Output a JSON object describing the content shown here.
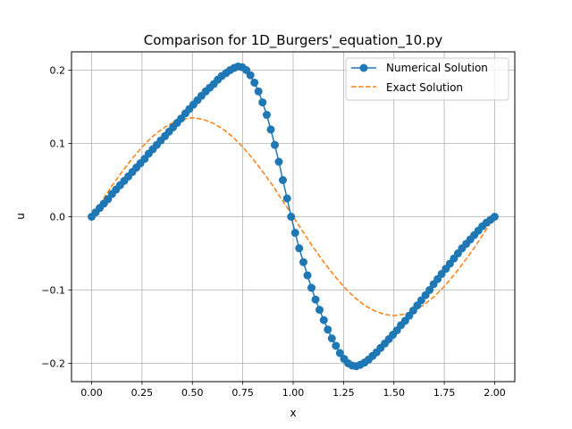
{
  "chart_data": {
    "type": "line",
    "title": "Comparison for 1D_Burgers'_equation_10.py",
    "xlabel": "x",
    "ylabel": "u",
    "xlim": [
      -0.1,
      2.1
    ],
    "ylim": [
      -0.225,
      0.225
    ],
    "xticks": [
      "0.00",
      "0.25",
      "0.50",
      "0.75",
      "1.00",
      "1.25",
      "1.50",
      "1.75",
      "2.00"
    ],
    "yticks": [
      "−0.2",
      "−0.1",
      "0.0",
      "0.1",
      "0.2"
    ],
    "grid": true,
    "legend_position": "top-right",
    "series": [
      {
        "name": "Numerical Solution",
        "style": "solid line with circle markers",
        "color": "#1f77b4",
        "x": [
          0.0,
          0.02,
          0.04,
          0.061,
          0.081,
          0.101,
          0.121,
          0.141,
          0.162,
          0.182,
          0.202,
          0.222,
          0.242,
          0.263,
          0.283,
          0.303,
          0.323,
          0.343,
          0.364,
          0.384,
          0.404,
          0.424,
          0.444,
          0.465,
          0.485,
          0.505,
          0.525,
          0.545,
          0.566,
          0.586,
          0.606,
          0.626,
          0.646,
          0.667,
          0.687,
          0.707,
          0.727,
          0.747,
          0.768,
          0.788,
          0.808,
          0.828,
          0.848,
          0.869,
          0.889,
          0.909,
          0.929,
          0.949,
          0.97,
          0.99,
          1.01,
          1.03,
          1.051,
          1.071,
          1.091,
          1.111,
          1.131,
          1.152,
          1.172,
          1.192,
          1.212,
          1.232,
          1.253,
          1.273,
          1.293,
          1.313,
          1.333,
          1.354,
          1.374,
          1.394,
          1.414,
          1.434,
          1.455,
          1.475,
          1.495,
          1.515,
          1.535,
          1.556,
          1.576,
          1.596,
          1.616,
          1.636,
          1.657,
          1.677,
          1.697,
          1.717,
          1.737,
          1.758,
          1.778,
          1.798,
          1.818,
          1.838,
          1.859,
          1.879,
          1.899,
          1.919,
          1.939,
          1.96,
          1.98,
          2.0
        ],
        "values": [
          0.0,
          0.006,
          0.012,
          0.018,
          0.024,
          0.031,
          0.037,
          0.043,
          0.049,
          0.055,
          0.061,
          0.067,
          0.073,
          0.079,
          0.086,
          0.092,
          0.098,
          0.104,
          0.11,
          0.116,
          0.122,
          0.128,
          0.134,
          0.141,
          0.147,
          0.153,
          0.159,
          0.165,
          0.171,
          0.176,
          0.181,
          0.187,
          0.192,
          0.196,
          0.2,
          0.203,
          0.205,
          0.204,
          0.2,
          0.193,
          0.183,
          0.171,
          0.156,
          0.139,
          0.119,
          0.098,
          0.075,
          0.05,
          0.025,
          0.0,
          -0.022,
          -0.043,
          -0.062,
          -0.08,
          -0.097,
          -0.113,
          -0.127,
          -0.141,
          -0.154,
          -0.166,
          -0.176,
          -0.186,
          -0.194,
          -0.2,
          -0.203,
          -0.204,
          -0.202,
          -0.199,
          -0.195,
          -0.19,
          -0.185,
          -0.179,
          -0.173,
          -0.167,
          -0.161,
          -0.155,
          -0.148,
          -0.142,
          -0.135,
          -0.128,
          -0.121,
          -0.114,
          -0.107,
          -0.1,
          -0.092,
          -0.085,
          -0.078,
          -0.071,
          -0.064,
          -0.057,
          -0.05,
          -0.043,
          -0.037,
          -0.031,
          -0.025,
          -0.019,
          -0.013,
          -0.008,
          -0.004,
          0.0
        ]
      },
      {
        "name": "Exact Solution",
        "style": "dashed line",
        "color": "#ff7f0e",
        "x": [
          0.0,
          0.05,
          0.1,
          0.15,
          0.2,
          0.25,
          0.3,
          0.35,
          0.4,
          0.45,
          0.5,
          0.55,
          0.6,
          0.65,
          0.7,
          0.75,
          0.8,
          0.85,
          0.9,
          0.95,
          1.0,
          1.05,
          1.1,
          1.15,
          1.2,
          1.25,
          1.3,
          1.35,
          1.4,
          1.45,
          1.5,
          1.55,
          1.6,
          1.65,
          1.7,
          1.75,
          1.8,
          1.85,
          1.9,
          1.95,
          2.0
        ],
        "values": [
          0.0,
          0.021,
          0.042,
          0.061,
          0.079,
          0.095,
          0.109,
          0.12,
          0.128,
          0.133,
          0.135,
          0.133,
          0.128,
          0.12,
          0.109,
          0.095,
          0.079,
          0.061,
          0.042,
          0.021,
          0.0,
          -0.021,
          -0.042,
          -0.061,
          -0.079,
          -0.095,
          -0.109,
          -0.12,
          -0.128,
          -0.133,
          -0.135,
          -0.133,
          -0.128,
          -0.12,
          -0.109,
          -0.095,
          -0.079,
          -0.061,
          -0.042,
          -0.021,
          0.0
        ]
      }
    ]
  }
}
